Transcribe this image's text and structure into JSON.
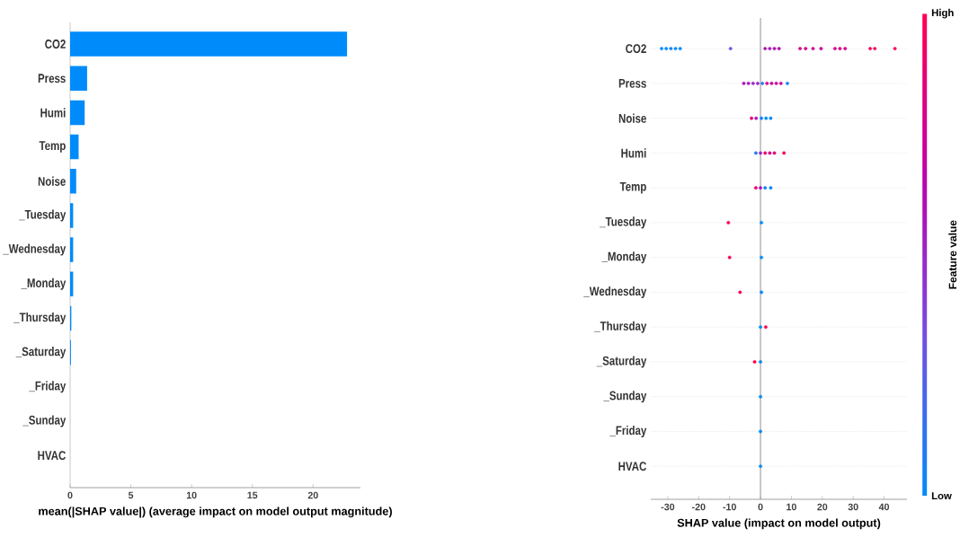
{
  "chart_data": [
    {
      "type": "bar",
      "orientation": "horizontal",
      "categories": [
        "CO2",
        "Press",
        "Humi",
        "Temp",
        "Noise",
        "_Tuesday",
        "_Wednesday",
        "_Monday",
        "_Thursday",
        "_Saturday",
        "_Friday",
        "_Sunday",
        "HVAC"
      ],
      "values": [
        22.8,
        1.4,
        1.2,
        0.7,
        0.5,
        0.25,
        0.25,
        0.25,
        0.1,
        0.07,
        null,
        null,
        0
      ],
      "color": "#008bfb",
      "xlabel": "mean(|SHAP value|) (average impact on model output magnitude)",
      "xlim": [
        0,
        23.9
      ],
      "xticks": [
        0,
        5,
        10,
        15,
        20
      ]
    },
    {
      "type": "scatter",
      "orientation": "horizontal",
      "categories": [
        "CO2",
        "Press",
        "Noise",
        "Humi",
        "Temp",
        "_Tuesday",
        "_Monday",
        "_Wednesday",
        "_Thursday",
        "_Saturday",
        "_Sunday",
        "_Friday",
        "HVAC"
      ],
      "series": [
        {
          "values": [
            -32,
            -5.4,
            -2.9,
            -1.5,
            -1.5,
            -10.4,
            -10,
            -6.6,
            0,
            -1.9,
            0,
            0,
            0
          ],
          "colors": [
            "#008bfb",
            "#b010b5",
            "#ec006c",
            "#2379f3",
            "#ec006c",
            "#ff0051",
            "#ff0051",
            "#ff0051",
            "#008bfb",
            "#ff0051",
            "#008bfb",
            "#008bfb",
            "#008bfb"
          ]
        },
        {
          "values": [
            -30.5,
            -3.9,
            -1.4,
            0,
            0,
            0.3,
            0.3,
            0.3,
            1.7,
            0,
            null,
            null,
            null
          ],
          "colors": [
            "#008bfb",
            "#a51bbe",
            "#a51bbe",
            "#9a27c6",
            "#b010b5",
            "#008bfb",
            "#008bfb",
            "#008bfb",
            "#ff0051",
            "#008bfb",
            null,
            null,
            null
          ]
        },
        {
          "values": [
            -29,
            -2.4,
            0.3,
            1.5,
            1.5,
            null,
            null,
            null,
            null,
            null,
            null,
            null,
            null
          ],
          "colors": [
            "#1282f7",
            "#9a27c6",
            "#1282f7",
            "#ec006c",
            "#1282f7",
            null,
            null,
            null,
            null,
            null,
            null,
            null,
            null
          ]
        },
        {
          "values": [
            -27.5,
            -0.9,
            1.8,
            3,
            3.3,
            null,
            null,
            null,
            null,
            null,
            null,
            null,
            null
          ],
          "colors": [
            "#008bfb",
            "#9a27c6",
            "#008bfb",
            "#d80086",
            "#008bfb",
            null,
            null,
            null,
            null,
            null,
            null,
            null,
            null
          ]
        },
        {
          "values": [
            -26,
            0.6,
            3.3,
            4.5,
            null,
            null,
            null,
            null,
            null,
            null,
            null,
            null,
            null
          ],
          "colors": [
            "#008bfb",
            "#2379f3",
            "#008bfb",
            "#ec006c",
            null,
            null,
            null,
            null,
            null,
            null,
            null,
            null,
            null
          ]
        },
        {
          "values": [
            -9.7,
            2.1,
            null,
            7.6,
            null,
            null,
            null,
            null,
            null,
            null,
            null,
            null,
            null
          ],
          "colors": [
            "#6a54e4",
            "#d80086",
            null,
            "#ff0051",
            null,
            null,
            null,
            null,
            null,
            null,
            null,
            null,
            null
          ]
        },
        {
          "values": [
            1.5,
            3.6,
            null,
            null,
            null,
            null,
            null,
            null,
            null,
            null,
            null,
            null,
            null
          ],
          "colors": [
            "#b010b5",
            "#c500a1",
            null,
            null,
            null,
            null,
            null,
            null,
            null,
            null,
            null,
            null,
            null
          ]
        },
        {
          "values": [
            3,
            5.1,
            null,
            null,
            null,
            null,
            null,
            null,
            null,
            null,
            null,
            null,
            null
          ],
          "colors": [
            "#a51bbe",
            "#ce0094",
            null,
            null,
            null,
            null,
            null,
            null,
            null,
            null,
            null,
            null,
            null
          ]
        },
        {
          "values": [
            4.5,
            6.6,
            null,
            null,
            null,
            null,
            null,
            null,
            null,
            null,
            null,
            null,
            null
          ],
          "colors": [
            "#b010b5",
            "#c500a1",
            null,
            null,
            null,
            null,
            null,
            null,
            null,
            null,
            null,
            null,
            null
          ]
        },
        {
          "values": [
            6,
            8.7,
            null,
            null,
            null,
            null,
            null,
            null,
            null,
            null,
            null,
            null,
            null
          ],
          "colors": [
            "#ba04ad",
            "#1282f7",
            null,
            null,
            null,
            null,
            null,
            null,
            null,
            null,
            null,
            null,
            null
          ]
        },
        {
          "values": [
            12.8,
            null,
            null,
            null,
            null,
            null,
            null,
            null,
            null,
            null,
            null,
            null,
            null
          ],
          "colors": [
            "#d80086",
            null,
            null,
            null,
            null,
            null,
            null,
            null,
            null,
            null,
            null,
            null,
            null
          ]
        },
        {
          "values": [
            14.6,
            null,
            null,
            null,
            null,
            null,
            null,
            null,
            null,
            null,
            null,
            null,
            null
          ],
          "colors": [
            "#d80086",
            null,
            null,
            null,
            null,
            null,
            null,
            null,
            null,
            null,
            null,
            null,
            null
          ]
        },
        {
          "values": [
            17,
            null,
            null,
            null,
            null,
            null,
            null,
            null,
            null,
            null,
            null,
            null,
            null
          ],
          "colors": [
            "#ce0094",
            null,
            null,
            null,
            null,
            null,
            null,
            null,
            null,
            null,
            null,
            null,
            null
          ]
        },
        {
          "values": [
            19.6,
            null,
            null,
            null,
            null,
            null,
            null,
            null,
            null,
            null,
            null,
            null,
            null
          ],
          "colors": [
            "#c500a1",
            null,
            null,
            null,
            null,
            null,
            null,
            null,
            null,
            null,
            null,
            null,
            null
          ]
        },
        {
          "values": [
            24.1,
            null,
            null,
            null,
            null,
            null,
            null,
            null,
            null,
            null,
            null,
            null,
            null
          ],
          "colors": [
            "#ce0094",
            null,
            null,
            null,
            null,
            null,
            null,
            null,
            null,
            null,
            null,
            null,
            null
          ]
        },
        {
          "values": [
            25.7,
            null,
            null,
            null,
            null,
            null,
            null,
            null,
            null,
            null,
            null,
            null,
            null
          ],
          "colors": [
            "#d80086",
            null,
            null,
            null,
            null,
            null,
            null,
            null,
            null,
            null,
            null,
            null,
            null
          ]
        },
        {
          "values": [
            27.4,
            null,
            null,
            null,
            null,
            null,
            null,
            null,
            null,
            null,
            null,
            null,
            null
          ],
          "colors": [
            "#d80086",
            null,
            null,
            null,
            null,
            null,
            null,
            null,
            null,
            null,
            null,
            null,
            null
          ]
        },
        {
          "values": [
            35.5,
            null,
            null,
            null,
            null,
            null,
            null,
            null,
            null,
            null,
            null,
            null,
            null
          ],
          "colors": [
            "#f5005e",
            null,
            null,
            null,
            null,
            null,
            null,
            null,
            null,
            null,
            null,
            null,
            null
          ]
        },
        {
          "values": [
            37,
            null,
            null,
            null,
            null,
            null,
            null,
            null,
            null,
            null,
            null,
            null,
            null
          ],
          "colors": [
            "#f5005e",
            null,
            null,
            null,
            null,
            null,
            null,
            null,
            null,
            null,
            null,
            null,
            null
          ]
        },
        {
          "values": [
            43.5,
            null,
            null,
            null,
            null,
            null,
            null,
            null,
            null,
            null,
            null,
            null,
            null
          ],
          "colors": [
            "#ff0051",
            null,
            null,
            null,
            null,
            null,
            null,
            null,
            null,
            null,
            null,
            null,
            null
          ]
        }
      ],
      "xlabel": "SHAP value (impact on model output)",
      "xlim": [
        -35.5,
        47.4
      ],
      "xticks": [
        -30,
        -20,
        -10,
        0,
        10,
        20,
        30,
        40
      ],
      "clabel": "Feature value",
      "clim": [
        0,
        1
      ],
      "cticks": [
        {
          "value": 0,
          "label": "Low"
        },
        {
          "value": 1,
          "label": "High"
        }
      ],
      "grid": "y",
      "ref_lines": [
        {
          "axis": "x",
          "value": 0,
          "color": "#999999"
        }
      ]
    }
  ]
}
